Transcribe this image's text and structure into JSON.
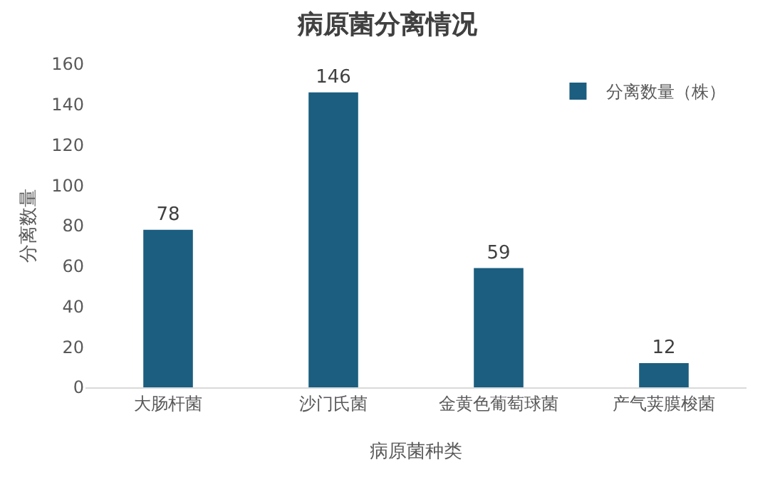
{
  "chart_data": {
    "type": "bar",
    "title": "病原菌分离情况",
    "xlabel": "病原菌种类",
    "ylabel": "分离数量",
    "categories": [
      "大肠杆菌",
      "沙门氏菌",
      "金黄色葡萄球菌",
      "产气荚膜梭菌"
    ],
    "series": [
      {
        "name": "分离数量（株）",
        "color": "#1b5e7f",
        "values": [
          78,
          146,
          59,
          12
        ]
      }
    ],
    "ylim": [
      0,
      160
    ],
    "yticks": [
      0,
      20,
      40,
      60,
      80,
      100,
      120,
      140,
      160
    ],
    "grid": false,
    "legend": "top right",
    "data_labels": true
  }
}
